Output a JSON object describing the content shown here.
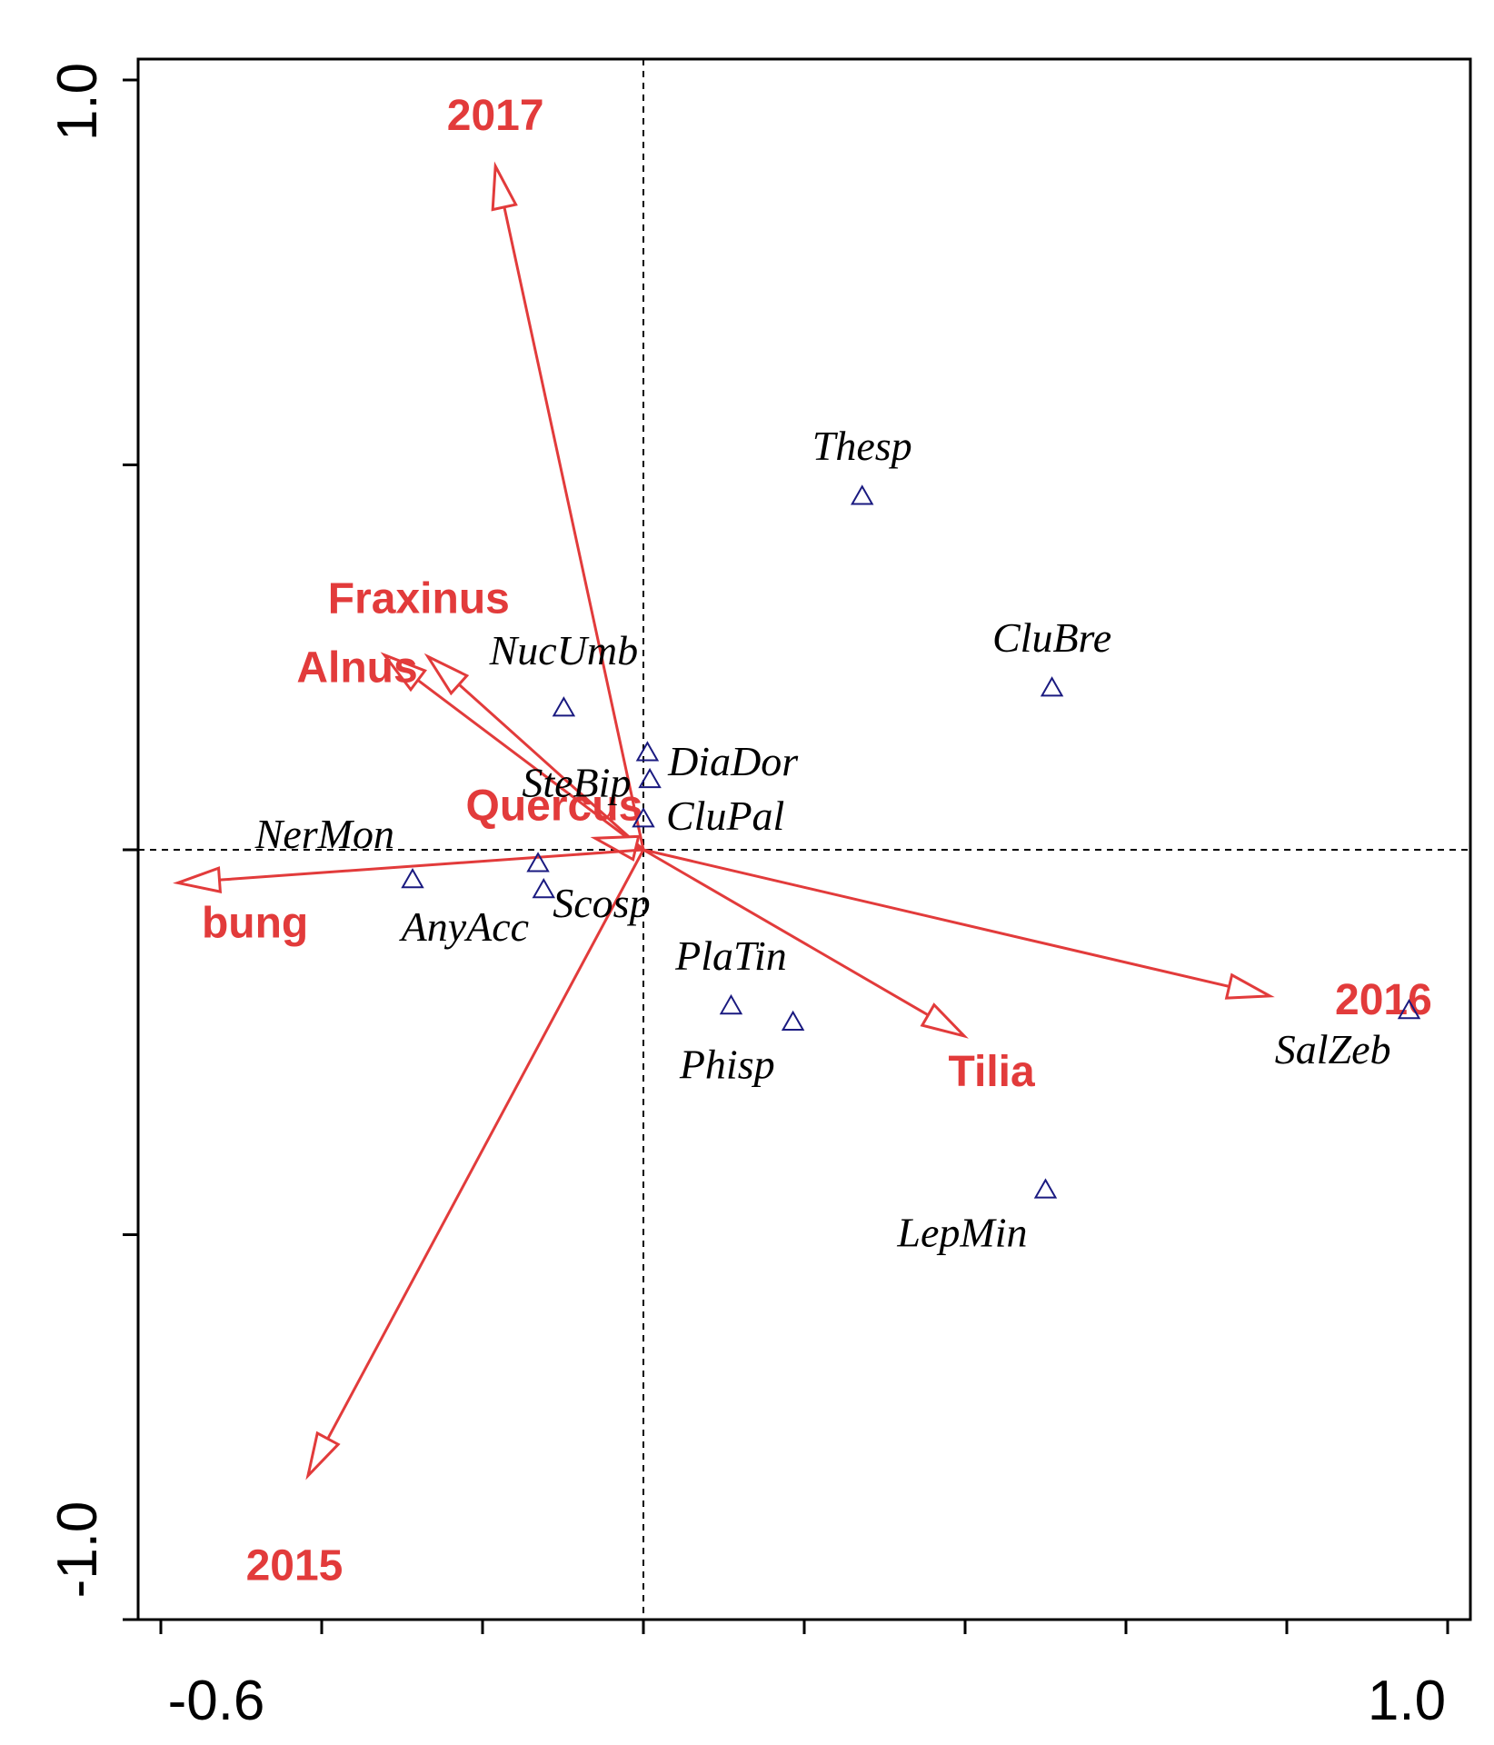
{
  "chart_data": {
    "type": "scatter",
    "title": "",
    "xlabel": "",
    "ylabel": "",
    "xlim": [
      -0.6,
      1.0
    ],
    "ylim": [
      -1.0,
      1.0
    ],
    "x_tick_labels": [
      "-0.6",
      "1.0"
    ],
    "y_tick_labels": [
      "1.0",
      "-1.0"
    ],
    "reference_lines": {
      "x": 0,
      "y": 0,
      "style": "dashed"
    },
    "colors": {
      "vectors": "#e23b3b",
      "species": "#1a1a80",
      "axes": "#000000"
    },
    "vectors": [
      {
        "name": "2017",
        "x": -0.184,
        "y": 0.888
      },
      {
        "name": "Fraxinus",
        "x": -0.268,
        "y": 0.251
      },
      {
        "name": "Alnus",
        "x": -0.322,
        "y": 0.253
      },
      {
        "name": "Quercus",
        "x": -0.06,
        "y": 0.015
      },
      {
        "name": "bung",
        "x": -0.579,
        "y": -0.043
      },
      {
        "name": "2015",
        "x": -0.417,
        "y": -0.813
      },
      {
        "name": "Tilia",
        "x": 0.399,
        "y": -0.242
      },
      {
        "name": "2016",
        "x": 0.779,
        "y": -0.19
      }
    ],
    "species": [
      {
        "name": "Thesp",
        "x": 0.272,
        "y": 0.459
      },
      {
        "name": "CluBre",
        "x": 0.508,
        "y": 0.21
      },
      {
        "name": "NucUmb",
        "x": -0.099,
        "y": 0.184
      },
      {
        "name": "SteBip",
        "x": 0.005,
        "y": 0.126
      },
      {
        "name": "DiaDor",
        "x": 0.008,
        "y": 0.091
      },
      {
        "name": "CluPal",
        "x": 0.0,
        "y": 0.04
      },
      {
        "name": "NerMon",
        "x": -0.287,
        "y": -0.039
      },
      {
        "name": "AnyAcc",
        "x": -0.131,
        "y": -0.018
      },
      {
        "name": "Scosp",
        "x": -0.124,
        "y": -0.052
      },
      {
        "name": "PlaTin",
        "x": 0.109,
        "y": -0.203
      },
      {
        "name": "Phisp",
        "x": 0.186,
        "y": -0.224
      },
      {
        "name": "LepMin",
        "x": 0.5,
        "y": -0.442
      },
      {
        "name": "SalZeb",
        "x": 0.952,
        "y": -0.209
      }
    ]
  }
}
